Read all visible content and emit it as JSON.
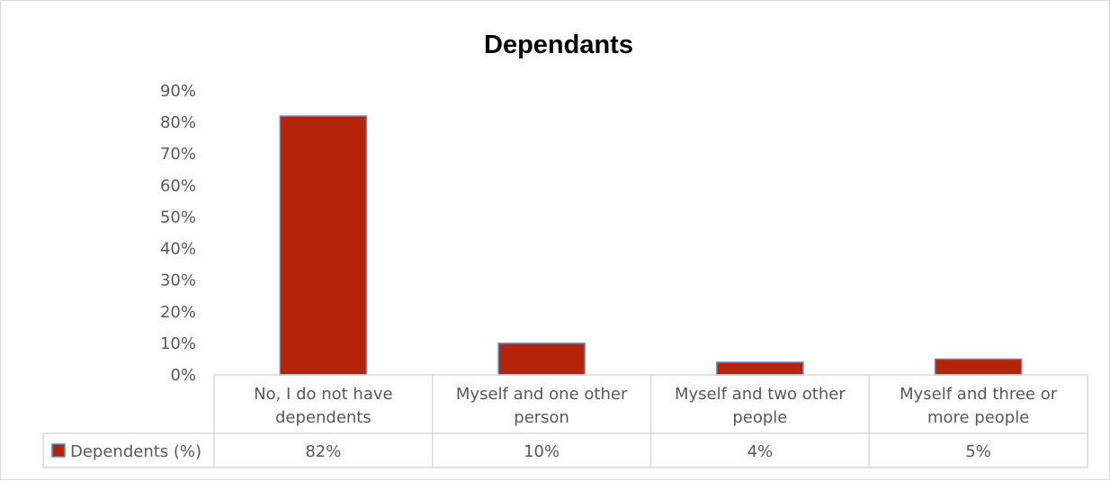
{
  "chart_data": {
    "type": "bar",
    "title": "Dependants",
    "categories": [
      [
        "No, I do not have",
        "dependents"
      ],
      [
        "Myself and one other",
        "person"
      ],
      [
        "Myself and two other",
        "people"
      ],
      [
        "Myself and three or",
        "more people"
      ]
    ],
    "series": [
      {
        "name": "Dependents (%)",
        "values": [
          82,
          10,
          4,
          5
        ],
        "value_labels": [
          "82%",
          "10%",
          "4%",
          "5%"
        ],
        "color": "#b52408",
        "border_color": "#5b8bd0"
      }
    ],
    "yticks": [
      "0%",
      "10%",
      "20%",
      "30%",
      "40%",
      "50%",
      "60%",
      "70%",
      "80%",
      "90%"
    ],
    "ylim": [
      0,
      90
    ],
    "data_table": true,
    "legend": "data-table-key"
  }
}
